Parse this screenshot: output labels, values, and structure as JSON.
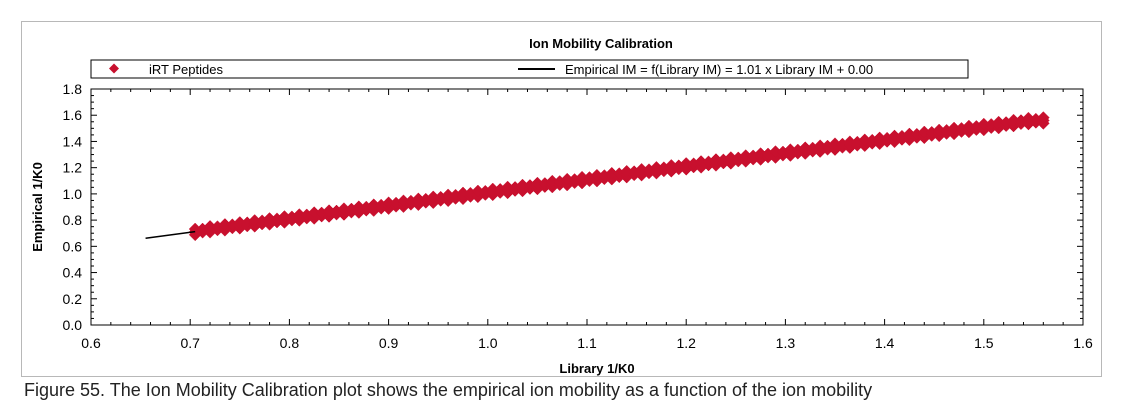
{
  "chart_data": {
    "type": "scatter",
    "title": "Ion Mobility Calibration",
    "xlabel": "Library 1/K0",
    "ylabel": "Empirical 1/K0",
    "xlim": [
      0.6,
      1.6
    ],
    "ylim": [
      0.0,
      1.8
    ],
    "xticks": [
      "0.6",
      "0.7",
      "0.8",
      "0.9",
      "1.0",
      "1.1",
      "1.2",
      "1.3",
      "1.4",
      "1.5",
      "1.6"
    ],
    "yticks": [
      "0.0",
      "0.2",
      "0.4",
      "0.6",
      "0.8",
      "1.0",
      "1.2",
      "1.4",
      "1.6",
      "1.8"
    ],
    "legend_position": "top",
    "grid": false,
    "series": [
      {
        "name": "iRT Peptides",
        "kind": "scatter",
        "marker": "diamond",
        "color": "#c8102e",
        "x": [
          0.705,
          0.72,
          0.735,
          0.75,
          0.765,
          0.78,
          0.795,
          0.81,
          0.825,
          0.84,
          0.855,
          0.87,
          0.885,
          0.9,
          0.915,
          0.93,
          0.945,
          0.96,
          0.975,
          0.99,
          1.005,
          1.02,
          1.035,
          1.05,
          1.065,
          1.08,
          1.095,
          1.11,
          1.125,
          1.14,
          1.155,
          1.17,
          1.185,
          1.2,
          1.215,
          1.23,
          1.245,
          1.26,
          1.275,
          1.29,
          1.305,
          1.32,
          1.335,
          1.35,
          1.365,
          1.38,
          1.395,
          1.41,
          1.425,
          1.44,
          1.455,
          1.47,
          1.485,
          1.5,
          1.515,
          1.53,
          1.545,
          1.56
        ],
        "y": [
          0.71,
          0.73,
          0.745,
          0.76,
          0.775,
          0.79,
          0.805,
          0.82,
          0.835,
          0.85,
          0.865,
          0.88,
          0.895,
          0.91,
          0.925,
          0.94,
          0.955,
          0.97,
          0.985,
          1.0,
          1.015,
          1.03,
          1.045,
          1.06,
          1.075,
          1.09,
          1.105,
          1.12,
          1.135,
          1.15,
          1.165,
          1.18,
          1.195,
          1.21,
          1.225,
          1.24,
          1.255,
          1.27,
          1.285,
          1.3,
          1.315,
          1.33,
          1.345,
          1.36,
          1.375,
          1.39,
          1.405,
          1.42,
          1.435,
          1.45,
          1.465,
          1.48,
          1.495,
          1.51,
          1.525,
          1.54,
          1.555,
          1.56
        ]
      },
      {
        "name": "Empirical IM = f(Library IM) = 1.01 x Library IM + 0.00",
        "kind": "line",
        "color": "#000000",
        "x": [
          0.655,
          0.705
        ],
        "y": [
          0.662,
          0.712
        ]
      }
    ]
  },
  "caption": "Figure 55. The Ion Mobility Calibration plot shows the empirical ion mobility as a function of the ion mobility"
}
